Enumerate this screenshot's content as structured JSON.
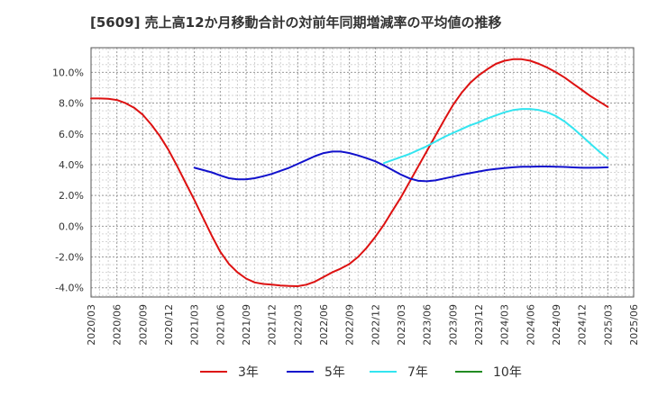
{
  "chart_data": {
    "type": "line",
    "title": "[5609]  売上高12か月移動合計の対前年同期増減率の平均値の推移",
    "xlabel": "",
    "ylabel": "",
    "ylim": [
      -4.6,
      11.6
    ],
    "y_ticks": [
      "-4.0%",
      "-2.0%",
      "0.0%",
      "2.0%",
      "4.0%",
      "6.0%",
      "8.0%",
      "10.0%"
    ],
    "y_tick_values": [
      -4,
      -2,
      0,
      2,
      4,
      6,
      8,
      10
    ],
    "categories": [
      "2020/03",
      "2020/06",
      "2020/09",
      "2020/12",
      "2021/03",
      "2021/06",
      "2021/09",
      "2021/12",
      "2022/03",
      "2022/06",
      "2022/09",
      "2022/12",
      "2023/03",
      "2023/06",
      "2023/09",
      "2023/12",
      "2024/03",
      "2024/06",
      "2024/09",
      "2024/12",
      "2025/03",
      "2025/06"
    ],
    "grid": true,
    "legend_position": "bottom",
    "series": [
      {
        "name": "3年",
        "color": "#dd1111",
        "points": [
          [
            "2020/03",
            8.3
          ],
          [
            "2020/04",
            8.3
          ],
          [
            "2020/05",
            8.28
          ],
          [
            "2020/06",
            8.2
          ],
          [
            "2020/07",
            8.0
          ],
          [
            "2020/08",
            7.7
          ],
          [
            "2020/09",
            7.25
          ],
          [
            "2020/10",
            6.6
          ],
          [
            "2020/11",
            5.85
          ],
          [
            "2020/12",
            4.95
          ],
          [
            "2021/01",
            3.9
          ],
          [
            "2021/02",
            2.8
          ],
          [
            "2021/03",
            1.7
          ],
          [
            "2021/04",
            0.55
          ],
          [
            "2021/05",
            -0.6
          ],
          [
            "2021/06",
            -1.65
          ],
          [
            "2021/07",
            -2.45
          ],
          [
            "2021/08",
            -3.0
          ],
          [
            "2021/09",
            -3.4
          ],
          [
            "2021/10",
            -3.65
          ],
          [
            "2021/11",
            -3.75
          ],
          [
            "2021/12",
            -3.8
          ],
          [
            "2022/01",
            -3.85
          ],
          [
            "2022/02",
            -3.88
          ],
          [
            "2022/03",
            -3.9
          ],
          [
            "2022/04",
            -3.8
          ],
          [
            "2022/05",
            -3.6
          ],
          [
            "2022/06",
            -3.3
          ],
          [
            "2022/07",
            -3.0
          ],
          [
            "2022/08",
            -2.75
          ],
          [
            "2022/09",
            -2.45
          ],
          [
            "2022/10",
            -2.0
          ],
          [
            "2022/11",
            -1.4
          ],
          [
            "2022/12",
            -0.7
          ],
          [
            "2023/01",
            0.1
          ],
          [
            "2023/02",
            1.0
          ],
          [
            "2023/03",
            1.9
          ],
          [
            "2023/04",
            2.9
          ],
          [
            "2023/05",
            3.9
          ],
          [
            "2023/06",
            4.9
          ],
          [
            "2023/07",
            5.9
          ],
          [
            "2023/08",
            6.9
          ],
          [
            "2023/09",
            7.85
          ],
          [
            "2023/10",
            8.65
          ],
          [
            "2023/11",
            9.3
          ],
          [
            "2023/12",
            9.8
          ],
          [
            "2024/01",
            10.2
          ],
          [
            "2024/02",
            10.55
          ],
          [
            "2024/03",
            10.75
          ],
          [
            "2024/04",
            10.85
          ],
          [
            "2024/05",
            10.85
          ],
          [
            "2024/06",
            10.75
          ],
          [
            "2024/07",
            10.55
          ],
          [
            "2024/08",
            10.3
          ],
          [
            "2024/09",
            10.0
          ],
          [
            "2024/10",
            9.65
          ],
          [
            "2024/11",
            9.25
          ],
          [
            "2024/12",
            8.85
          ],
          [
            "2025/01",
            8.45
          ],
          [
            "2025/02",
            8.1
          ],
          [
            "2025/03",
            7.75
          ]
        ]
      },
      {
        "name": "5年",
        "color": "#1111cc",
        "points": [
          [
            "2021/03",
            3.8
          ],
          [
            "2021/04",
            3.65
          ],
          [
            "2021/05",
            3.5
          ],
          [
            "2021/06",
            3.3
          ],
          [
            "2021/07",
            3.12
          ],
          [
            "2021/08",
            3.05
          ],
          [
            "2021/09",
            3.05
          ],
          [
            "2021/10",
            3.12
          ],
          [
            "2021/11",
            3.25
          ],
          [
            "2021/12",
            3.4
          ],
          [
            "2022/01",
            3.6
          ],
          [
            "2022/02",
            3.8
          ],
          [
            "2022/03",
            4.05
          ],
          [
            "2022/04",
            4.3
          ],
          [
            "2022/05",
            4.55
          ],
          [
            "2022/06",
            4.75
          ],
          [
            "2022/07",
            4.85
          ],
          [
            "2022/08",
            4.85
          ],
          [
            "2022/09",
            4.75
          ],
          [
            "2022/10",
            4.6
          ],
          [
            "2022/11",
            4.42
          ],
          [
            "2022/12",
            4.22
          ],
          [
            "2023/01",
            3.95
          ],
          [
            "2023/02",
            3.65
          ],
          [
            "2023/03",
            3.35
          ],
          [
            "2023/04",
            3.1
          ],
          [
            "2023/05",
            2.95
          ],
          [
            "2023/06",
            2.92
          ],
          [
            "2023/07",
            2.98
          ],
          [
            "2023/08",
            3.1
          ],
          [
            "2023/09",
            3.22
          ],
          [
            "2023/10",
            3.35
          ],
          [
            "2023/11",
            3.45
          ],
          [
            "2023/12",
            3.55
          ],
          [
            "2024/01",
            3.65
          ],
          [
            "2024/02",
            3.72
          ],
          [
            "2024/03",
            3.78
          ],
          [
            "2024/04",
            3.83
          ],
          [
            "2024/05",
            3.86
          ],
          [
            "2024/06",
            3.87
          ],
          [
            "2024/07",
            3.88
          ],
          [
            "2024/08",
            3.88
          ],
          [
            "2024/09",
            3.87
          ],
          [
            "2024/10",
            3.85
          ],
          [
            "2024/11",
            3.82
          ],
          [
            "2024/12",
            3.8
          ],
          [
            "2025/01",
            3.8
          ],
          [
            "2025/02",
            3.81
          ],
          [
            "2025/03",
            3.83
          ]
        ]
      },
      {
        "name": "7年",
        "color": "#33e5f0",
        "points": [
          [
            "2023/01",
            4.1
          ],
          [
            "2023/02",
            4.3
          ],
          [
            "2023/03",
            4.5
          ],
          [
            "2023/04",
            4.7
          ],
          [
            "2023/05",
            4.95
          ],
          [
            "2023/06",
            5.2
          ],
          [
            "2023/07",
            5.5
          ],
          [
            "2023/08",
            5.8
          ],
          [
            "2023/09",
            6.05
          ],
          [
            "2023/10",
            6.3
          ],
          [
            "2023/11",
            6.55
          ],
          [
            "2023/12",
            6.75
          ],
          [
            "2024/01",
            7.0
          ],
          [
            "2024/02",
            7.2
          ],
          [
            "2024/03",
            7.4
          ],
          [
            "2024/04",
            7.55
          ],
          [
            "2024/05",
            7.62
          ],
          [
            "2024/06",
            7.62
          ],
          [
            "2024/07",
            7.55
          ],
          [
            "2024/08",
            7.4
          ],
          [
            "2024/09",
            7.15
          ],
          [
            "2024/10",
            6.8
          ],
          [
            "2024/11",
            6.35
          ],
          [
            "2024/12",
            5.85
          ],
          [
            "2025/01",
            5.35
          ],
          [
            "2025/02",
            4.85
          ],
          [
            "2025/03",
            4.4
          ]
        ]
      },
      {
        "name": "10年",
        "color": "#228b22",
        "points": []
      }
    ]
  }
}
